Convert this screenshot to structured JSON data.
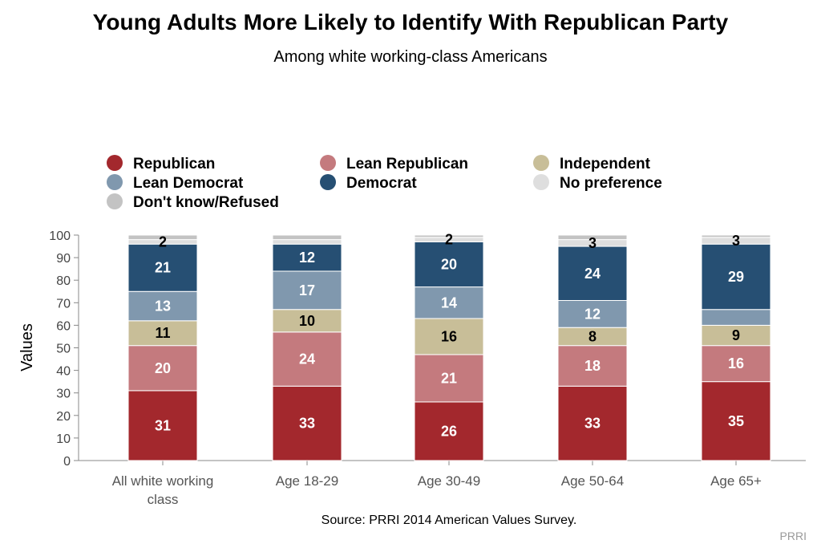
{
  "header": {
    "title": "Young Adults More Likely to Identify With Republican Party",
    "subtitle": "Among white working-class Americans"
  },
  "footer": {
    "source": "Source: PRRI 2014 American Values Survey.",
    "brand": "PRRI"
  },
  "chart_data": {
    "type": "bar",
    "stacked": true,
    "title": "Young Adults More Likely to Identify With Republican Party",
    "subtitle": "Among white working-class Americans",
    "ylabel": "Values",
    "xlabel": "",
    "ylim": [
      0,
      100
    ],
    "yticks": [
      0,
      10,
      20,
      30,
      40,
      50,
      60,
      70,
      80,
      90,
      100
    ],
    "grid": false,
    "legend_position": "top",
    "categories": [
      [
        "All white working",
        "class"
      ],
      [
        "Age 18-29"
      ],
      [
        "Age 30-49"
      ],
      [
        "Age 50-64"
      ],
      [
        "Age 65+"
      ]
    ],
    "series": [
      {
        "name": "Republican",
        "color": "#a3282d",
        "label_color": "#ffffff",
        "values": [
          31,
          33,
          26,
          33,
          35
        ],
        "labels": [
          "31",
          "33",
          "26",
          "33",
          "35"
        ]
      },
      {
        "name": "Lean Republican",
        "color": "#c47a7e",
        "label_color": "#ffffff",
        "values": [
          20,
          24,
          21,
          18,
          16
        ],
        "labels": [
          "20",
          "24",
          "21",
          "18",
          "16"
        ]
      },
      {
        "name": "Independent",
        "color": "#c8be98",
        "label_color": "#000000",
        "values": [
          11,
          10,
          16,
          8,
          9
        ],
        "labels": [
          "11",
          "10",
          "16",
          "8",
          "9"
        ]
      },
      {
        "name": "Lean Democrat",
        "color": "#8098ae",
        "label_color": "#ffffff",
        "values": [
          13,
          17,
          14,
          12,
          7
        ],
        "labels": [
          "13",
          "17",
          "14",
          "12",
          ""
        ]
      },
      {
        "name": "Democrat",
        "color": "#264f73",
        "label_color": "#ffffff",
        "values": [
          21,
          12,
          20,
          24,
          29
        ],
        "labels": [
          "21",
          "12",
          "20",
          "24",
          "29"
        ]
      },
      {
        "name": "No preference",
        "color": "#dedede",
        "label_color": "#000000",
        "values": [
          2,
          2,
          2,
          3,
          3
        ],
        "labels": [
          "2",
          "",
          "2",
          "3",
          "3"
        ]
      },
      {
        "name": "Don't know/Refused",
        "color": "#c3c3c3",
        "label_color": "#000000",
        "values": [
          2,
          2,
          1,
          2,
          1
        ],
        "labels": [
          "",
          "",
          "",
          "",
          ""
        ]
      }
    ],
    "legend_order": [
      "Republican",
      "Lean Republican",
      "Independent",
      "Lean Democrat",
      "Democrat",
      "No preference",
      "Don't know/Refused"
    ]
  }
}
